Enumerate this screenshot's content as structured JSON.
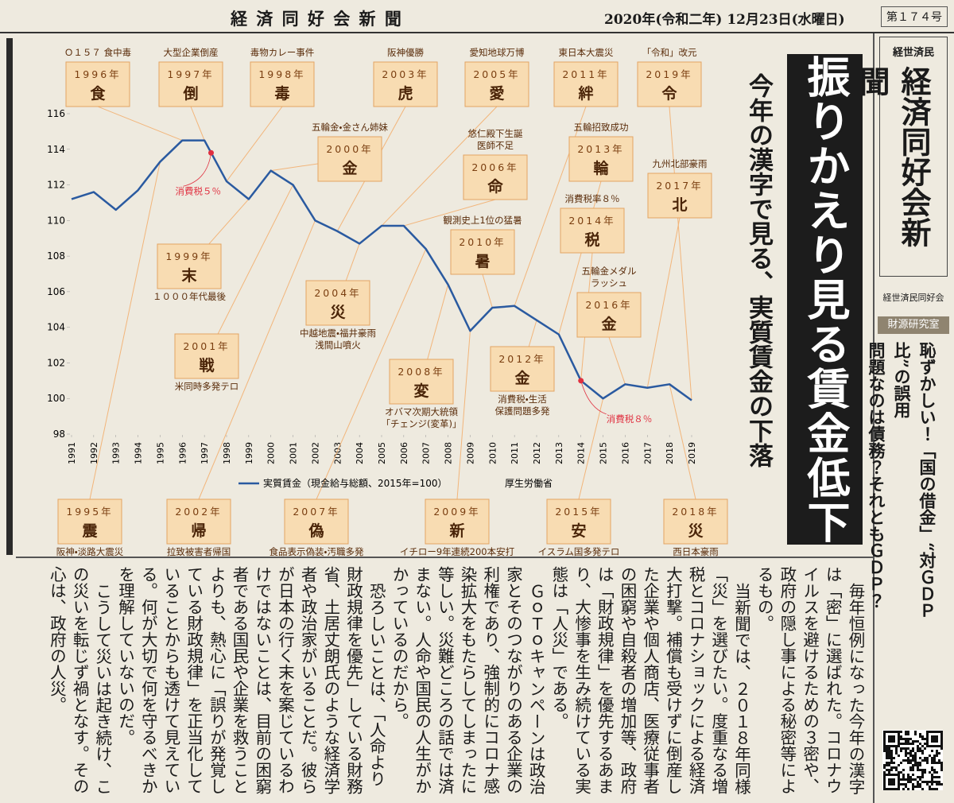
{
  "header": {
    "title": "経 済 同 好 会 新 聞",
    "date": "2020年(令和二年) 12月23日(水曜日)",
    "issue": "第１７４号"
  },
  "headline": "振りかえり見る賃金低下",
  "subheadline": "今年の漢字で見る、実質賃金の下落",
  "chart_data": {
    "type": "line",
    "x": [
      1991,
      1992,
      1993,
      1994,
      1995,
      1996,
      1997,
      1998,
      1999,
      2000,
      2001,
      2002,
      2003,
      2004,
      2005,
      2006,
      2007,
      2008,
      2009,
      2010,
      2011,
      2012,
      2013,
      2014,
      2015,
      2016,
      2017,
      2018,
      2019
    ],
    "xlim": [
      1991,
      2019
    ],
    "ylim": [
      98,
      116
    ],
    "yticks": [
      98,
      100,
      102,
      104,
      106,
      108,
      110,
      112,
      114,
      116
    ],
    "series": [
      {
        "name": "実質賃金（現金給与総額、2015年=100）",
        "color": "#2a5aa0",
        "values": [
          111.2,
          111.6,
          110.6,
          111.7,
          113.3,
          114.5,
          114.5,
          112.2,
          111.2,
          112.8,
          112.0,
          110.0,
          109.4,
          108.7,
          109.7,
          109.7,
          108.4,
          106.4,
          103.8,
          105.1,
          105.2,
          104.4,
          103.6,
          101.0,
          100.0,
          100.8,
          100.6,
          100.8,
          99.9
        ]
      }
    ],
    "source": "厚生労働省",
    "markers": [
      {
        "label": "消費税５％",
        "x": 1997.3,
        "y": 113.8,
        "color": "#e03040"
      },
      {
        "label": "消費税８％",
        "x": 2014,
        "y": 101.0,
        "color": "#e03040"
      }
    ],
    "kanji_boxes": [
      {
        "year": "1996年",
        "kanji": "食",
        "note": [
          "Ｏ１５７ 食中毒"
        ]
      },
      {
        "year": "1997年",
        "kanji": "倒",
        "note": [
          "大型企業倒産"
        ]
      },
      {
        "year": "1998年",
        "kanji": "毒",
        "note": [
          "毒物カレー事件"
        ]
      },
      {
        "year": "2003年",
        "kanji": "虎",
        "note": [
          "阪神優勝"
        ]
      },
      {
        "year": "2005年",
        "kanji": "愛",
        "note": [
          "愛知地球万博"
        ]
      },
      {
        "year": "2011年",
        "kanji": "絆",
        "note": [
          "東日本大震災"
        ]
      },
      {
        "year": "2019年",
        "kanji": "令",
        "note": [
          "「令和」改元"
        ]
      },
      {
        "year": "2000年",
        "kanji": "金",
        "note": [
          "五輪金・金さん姉妹"
        ]
      },
      {
        "year": "2006年",
        "kanji": "命",
        "note": [
          "悠仁殿下生誕",
          "医師不足"
        ]
      },
      {
        "year": "2013年",
        "kanji": "輪",
        "note": [
          "五輪招致成功"
        ]
      },
      {
        "year": "2017年",
        "kanji": "北",
        "note": [
          "九州北部豪雨"
        ]
      },
      {
        "year": "2014年",
        "kanji": "税",
        "note": [
          "消費税率８％"
        ]
      },
      {
        "year": "2010年",
        "kanji": "暑",
        "note": [
          "観測史上1位の猛暑"
        ]
      },
      {
        "year": "1999年",
        "kanji": "末",
        "note": [
          "１０００年代最後"
        ]
      },
      {
        "year": "2004年",
        "kanji": "災",
        "note": [
          "中越地震・福井豪雨",
          "浅間山噴火"
        ]
      },
      {
        "year": "2016年",
        "kanji": "金",
        "note": [
          "五輪金メダル",
          "ラッシュ"
        ]
      },
      {
        "year": "2001年",
        "kanji": "戦",
        "note": [
          "米同時多発テロ"
        ]
      },
      {
        "year": "2012年",
        "kanji": "金",
        "note": [
          "消費税・生活",
          "保護問題多発"
        ]
      },
      {
        "year": "2008年",
        "kanji": "変",
        "note": [
          "オバマ次期大統領",
          "「チェンジ(変革)」"
        ]
      },
      {
        "year": "1995年",
        "kanji": "震",
        "note": [
          "阪神・淡路大震災"
        ]
      },
      {
        "year": "2002年",
        "kanji": "帰",
        "note": [
          "拉致被害者帰国"
        ]
      },
      {
        "year": "2007年",
        "kanji": "偽",
        "note": [
          "食品表示偽装・汚職多発"
        ]
      },
      {
        "year": "2009年",
        "kanji": "新",
        "note": [
          "イチロー9年連続200本安打"
        ]
      },
      {
        "year": "2015年",
        "kanji": "安",
        "note": [
          "イスラム国多発テロ"
        ]
      },
      {
        "year": "2018年",
        "kanji": "災",
        "note": [
          "西日本豪雨"
        ]
      }
    ]
  },
  "article": {
    "paragraphs": [
      "毎年恒例になった今年の漢字は「密」に選ばれた。コロナウイルスを避けるための３密や、政府の隠し事による秘密等によるもの。",
      "当新聞では、２０１８年同様「災」を選びたい。度重なる増税とコロナショックによる経済大打撃。補償も受けずに倒産した企業や個人商店、医療従事者の困窮や自殺者の増加等、政府は「財政規律」を優先するあまり、大惨事を生み続けている実態は「人災」である。",
      "ＧｏＴｏキャンペーンは政治家とそのつながりのある企業の利権であり、強制的にコロナ感染拡大をもたらしてしまったに等しい。災難どころの話では済まない。人命や国民の人生がかかっているのだから。",
      "恐ろしいことは、「人命より財政規律を優先」している財務省、土居丈朗氏のような経済学者や政治家がいることだ。彼らが日本の行く末を案じているわけではないことは、目前の困窮者である国民や企業を救うことよりも、熱心に「誤りが発覚している財政規律」を正当化していることからも透けて見えている。何が大切で何を守るべきかを理解していないのだ。",
      "こうして災いは起き続け、この災いを転じず禍となす。その心は、政府の人災。"
    ]
  },
  "sidebar": {
    "masthead_top": "経世済民",
    "masthead": "経済同好会新聞",
    "masthead_bottom": "経世済民同好会",
    "section": "財源研究室",
    "headline": [
      "恥ずかしい！「国の借金」“対ＧＤＰ比”の誤用",
      "問題なのは債務？それともＧＤＰ？"
    ]
  }
}
